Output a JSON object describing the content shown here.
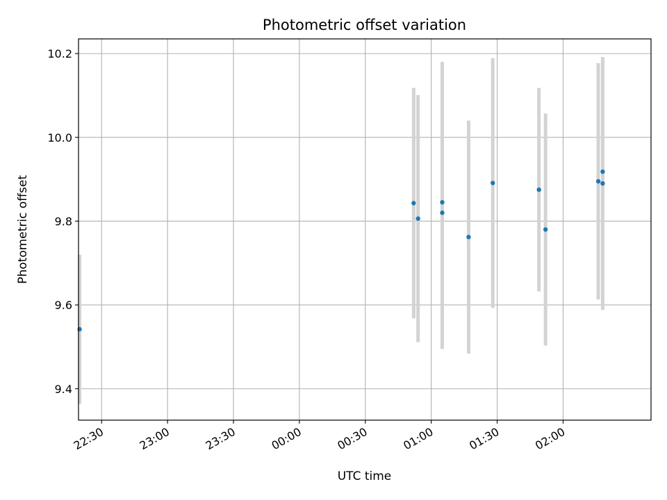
{
  "chart_data": {
    "type": "scatter",
    "title": "Photometric offset variation",
    "xlabel": "UTC time",
    "ylabel": "Photometric offset",
    "grid": true,
    "x_ticks": [
      "22:30",
      "23:00",
      "23:30",
      "00:00",
      "00:30",
      "01:00",
      "01:30",
      "02:00"
    ],
    "xlim": [
      "22:19.5",
      "02:40.0"
    ],
    "ylim": [
      9.325,
      10.235
    ],
    "y_ticks": [
      "9.4",
      "9.6",
      "9.8",
      "10.0",
      "10.2"
    ],
    "colors": {
      "point": "#1f77b4",
      "errorbar": "#d3d3d3",
      "grid": "#b0b0b0"
    },
    "series": [
      {
        "points": [
          {
            "x": "22:20",
            "y": 9.542,
            "err": 0.178
          },
          {
            "x": "00:52",
            "y": 9.843,
            "err": 0.275
          },
          {
            "x": "00:54",
            "y": 9.806,
            "err": 0.295
          },
          {
            "x": "01:05",
            "y": 9.82,
            "err": 0.325
          },
          {
            "x": "01:05",
            "y": 9.845,
            "err": 0.335
          },
          {
            "x": "01:17",
            "y": 9.762,
            "err": 0.278
          },
          {
            "x": "01:28",
            "y": 9.891,
            "err": 0.298
          },
          {
            "x": "01:49",
            "y": 9.875,
            "err": 0.243
          },
          {
            "x": "01:52",
            "y": 9.78,
            "err": 0.277
          },
          {
            "x": "02:16",
            "y": 9.895,
            "err": 0.282
          },
          {
            "x": "02:18",
            "y": 9.89,
            "err": 0.302
          },
          {
            "x": "02:18",
            "y": 9.918,
            "err": 0.266
          }
        ]
      }
    ]
  }
}
